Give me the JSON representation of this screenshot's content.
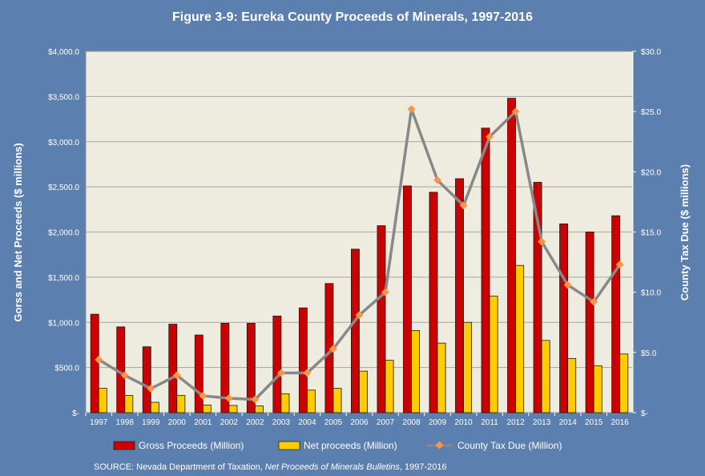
{
  "chart_data": {
    "type": "bar",
    "title": "Figure 3-9: Eureka County Proceeds of Minerals, 1997-2016",
    "ylabel": "Gorss and Net Proceeds ($ millions)",
    "y2label": "County Tax Due ($ millions)",
    "ylim": [
      0,
      4000
    ],
    "y2lim": [
      0,
      30
    ],
    "yticks": [
      "$4,000.0",
      "$3,500.0",
      "$3,000.0",
      "$2,500.0",
      "$2,000.0",
      "$1,500.0",
      "$1,000.0",
      "$500.0",
      "$-"
    ],
    "y2ticks": [
      "$30.0",
      "$25.0",
      "$20.0",
      "$15.0",
      "$10.0",
      "$5.0",
      "$-"
    ],
    "grid": true,
    "legend_position": "bottom",
    "categories": [
      "1997",
      "1998",
      "1999",
      "2000",
      "2001",
      "2002",
      "2002",
      "2003",
      "2004",
      "2005",
      "2006",
      "2007",
      "2008",
      "2009",
      "2010",
      "2011",
      "2012",
      "2013",
      "2014",
      "2015",
      "2016"
    ],
    "series": [
      {
        "name": "Gross Proceeds (Million)",
        "kind": "bar",
        "axis": "left",
        "color": "#cc0000",
        "values": [
          1090,
          950,
          730,
          980,
          860,
          990,
          990,
          1070,
          1160,
          1430,
          1810,
          2070,
          2510,
          2440,
          2590,
          3150,
          3480,
          2550,
          2090,
          2000,
          2180
        ]
      },
      {
        "name": "Net proceeds (Million)",
        "kind": "bar",
        "axis": "left",
        "color": "#ffcc00",
        "values": [
          270,
          190,
          115,
          190,
          85,
          80,
          75,
          210,
          250,
          270,
          460,
          580,
          910,
          770,
          1000,
          1290,
          1630,
          800,
          600,
          520,
          650
        ]
      },
      {
        "name": "County Tax Due (Million)",
        "kind": "line",
        "axis": "right",
        "color": "#888888",
        "marker_color": "#f79646",
        "values": [
          4.4,
          3.1,
          2.0,
          3.1,
          1.4,
          1.2,
          1.1,
          3.3,
          3.3,
          5.3,
          8.1,
          10.0,
          25.2,
          19.3,
          17.2,
          22.9,
          25.0,
          14.2,
          10.6,
          9.2,
          12.3
        ]
      }
    ]
  },
  "source": {
    "prefix": "SOURCE: Nevada Department of Taxation, ",
    "italic": "Net Proceeds of Minerals Bulletins",
    "suffix": ", 1997-2016"
  },
  "colors": {
    "background": "#5b7fae",
    "plot_area": "#eeecdf",
    "grid": "#a6a6a6"
  }
}
